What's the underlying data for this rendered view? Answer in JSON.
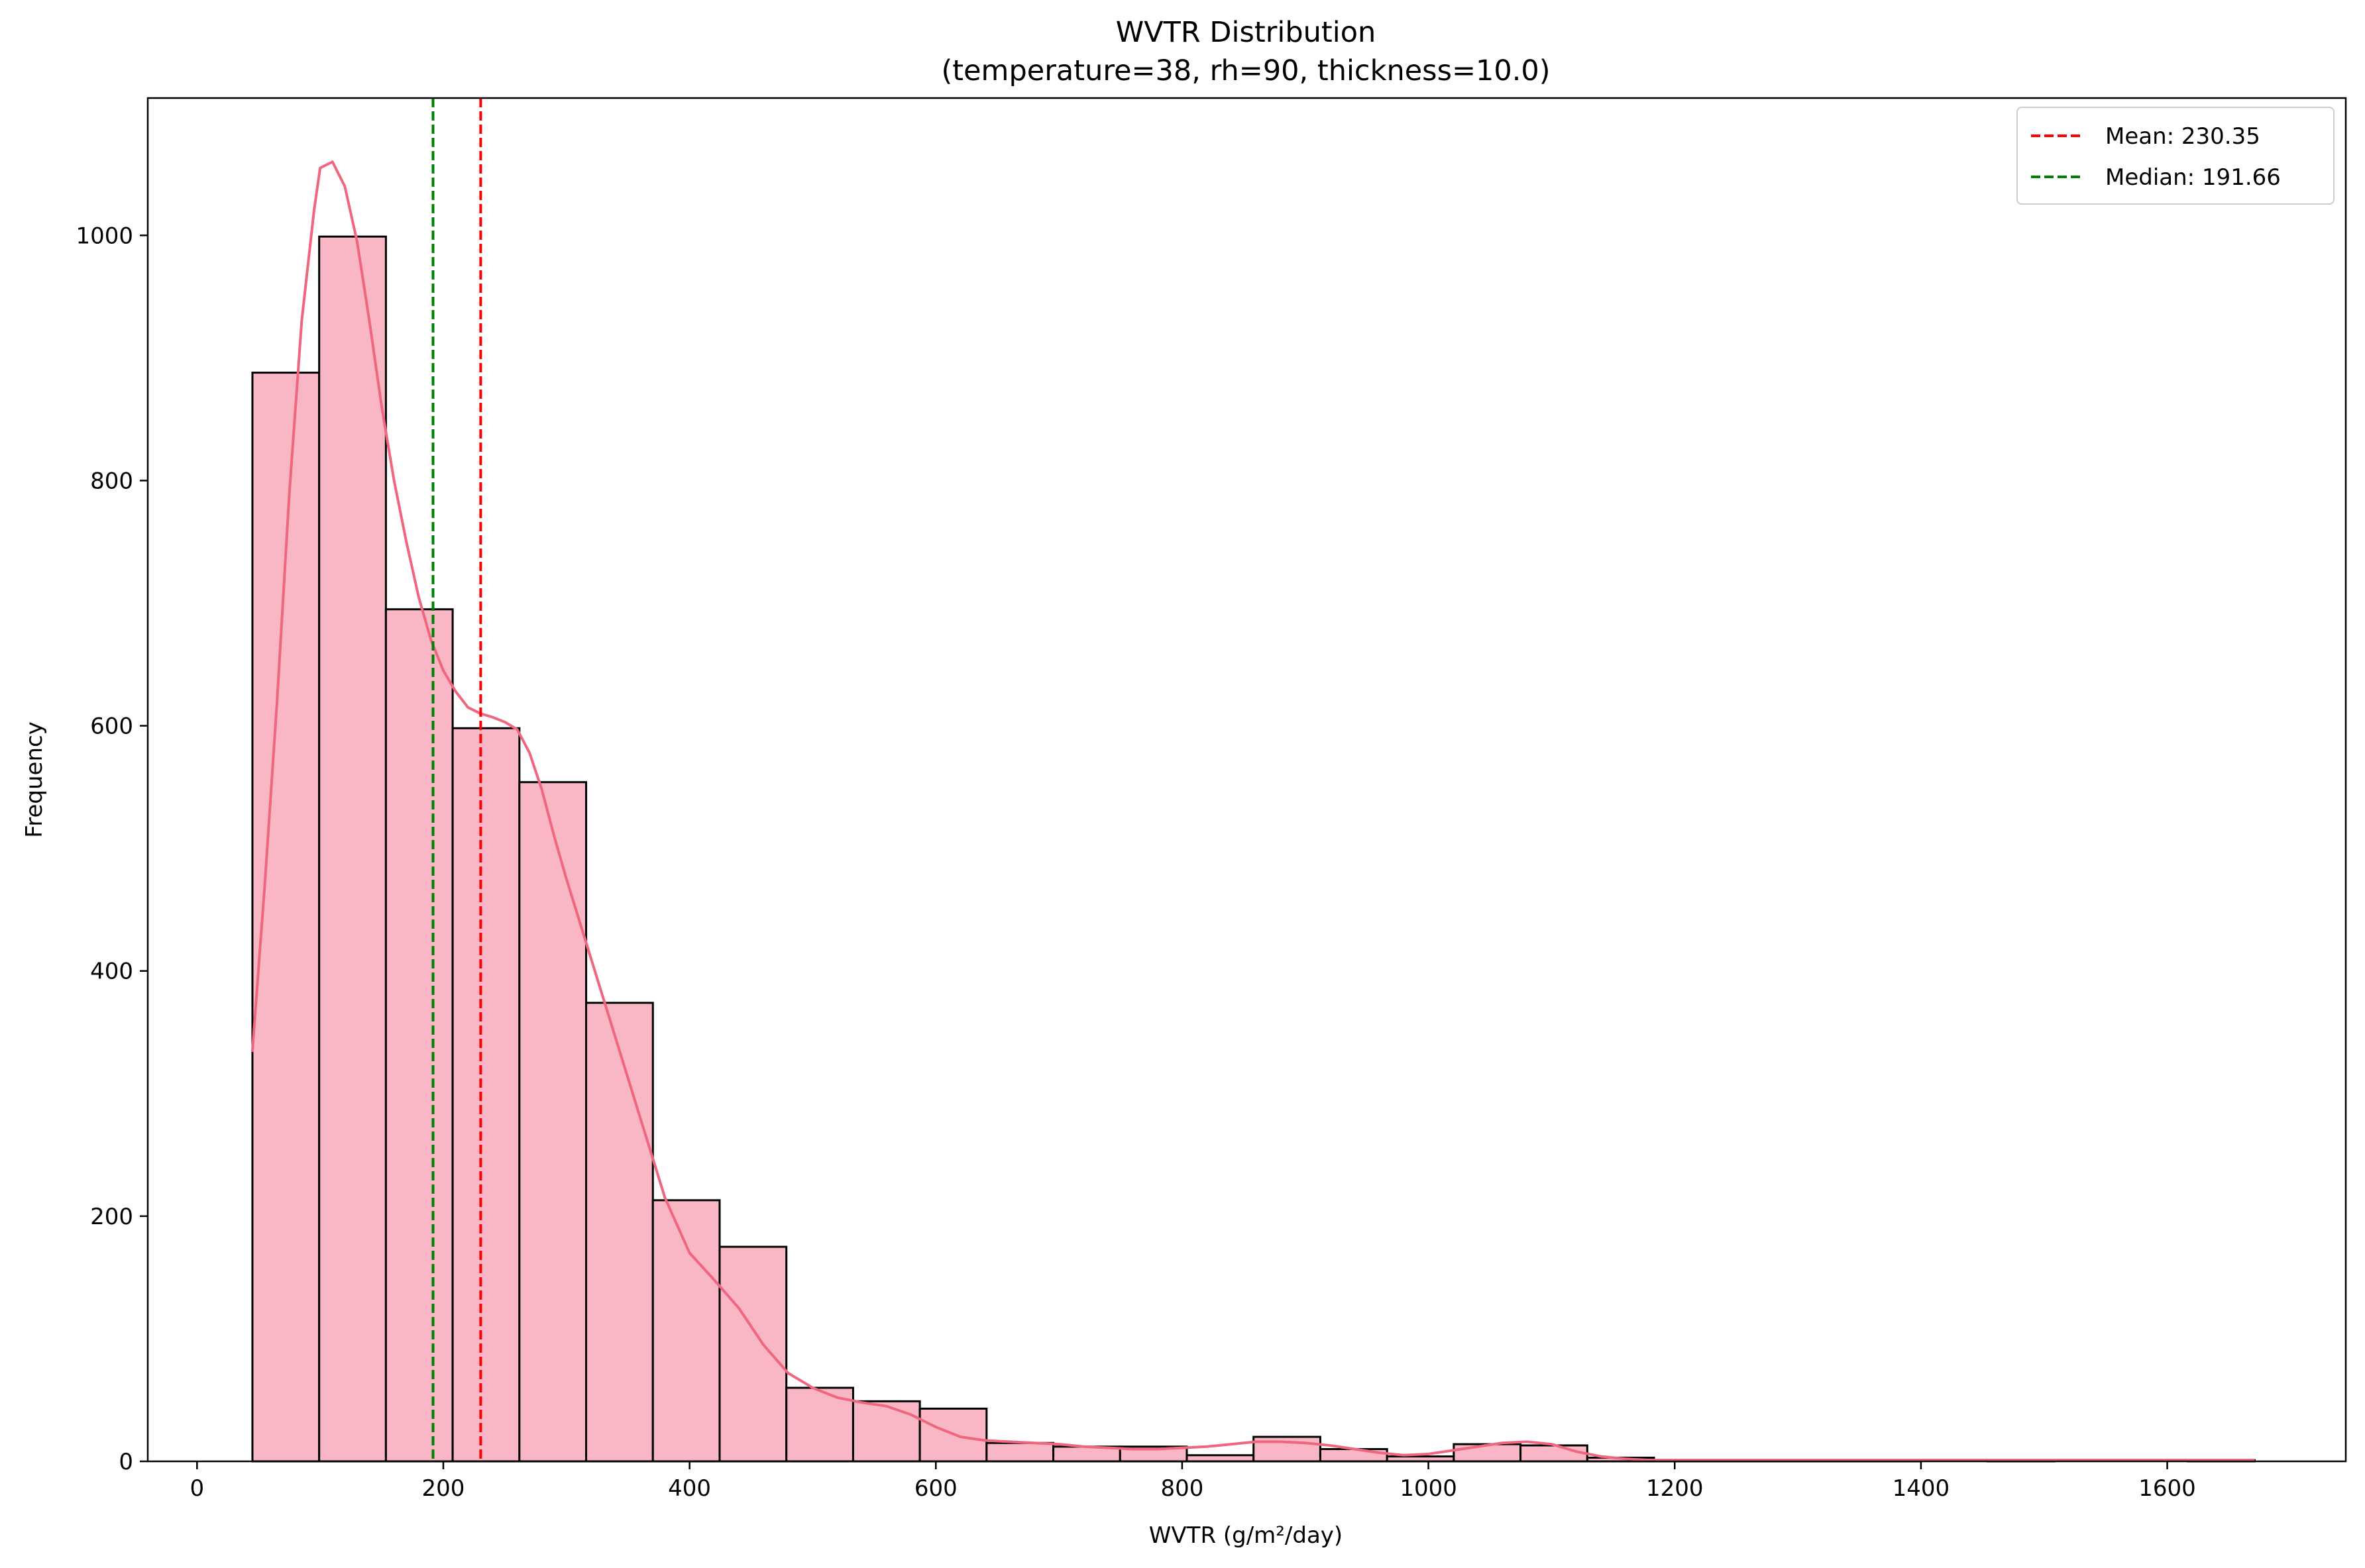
{
  "chart_data": {
    "type": "histogram",
    "title": "WVTR Distribution",
    "subtitle": "(temperature=38, rh=90, thickness=10.0)",
    "xlabel": "WVTR (g/m²/day)",
    "ylabel": "Frequency",
    "xlim": [
      -40,
      1745
    ],
    "ylim": [
      0,
      1112
    ],
    "xticks": [
      0,
      200,
      400,
      600,
      800,
      1000,
      1200,
      1400,
      1600
    ],
    "yticks": [
      0,
      200,
      400,
      600,
      800,
      1000
    ],
    "bin_start": 45,
    "bin_width": 54.2,
    "bin_counts": [
      888,
      999,
      695,
      598,
      554,
      374,
      213,
      175,
      60,
      49,
      43,
      15,
      12,
      12,
      5,
      20,
      10,
      4,
      14,
      13,
      3,
      1,
      1,
      1,
      1,
      0,
      1,
      0,
      0,
      1
    ],
    "kde": {
      "x": [
        45,
        55,
        65,
        75,
        85,
        95,
        100,
        110,
        120,
        130,
        140,
        150,
        160,
        170,
        180,
        190,
        200,
        210,
        220,
        230,
        240,
        250,
        260,
        270,
        280,
        290,
        300,
        320,
        340,
        360,
        380,
        400,
        420,
        440,
        460,
        480,
        500,
        520,
        540,
        560,
        580,
        600,
        620,
        640,
        660,
        680,
        700,
        720,
        740,
        760,
        780,
        800,
        820,
        840,
        860,
        880,
        900,
        920,
        940,
        960,
        980,
        1000,
        1020,
        1040,
        1060,
        1080,
        1100,
        1120,
        1140,
        1160,
        1180,
        1200,
        1300,
        1400,
        1500,
        1600,
        1670
      ],
      "y": [
        335,
        470,
        620,
        790,
        930,
        1020,
        1055,
        1060,
        1040,
        995,
        930,
        860,
        800,
        750,
        705,
        670,
        645,
        628,
        615,
        610,
        607,
        603,
        597,
        578,
        548,
        510,
        475,
        410,
        345,
        280,
        215,
        170,
        148,
        125,
        95,
        72,
        60,
        52,
        48,
        45,
        38,
        28,
        20,
        17,
        16,
        15,
        14,
        12,
        11,
        10,
        10,
        11,
        12,
        14,
        16,
        16,
        15,
        13,
        10,
        7,
        5,
        6,
        9,
        12,
        15,
        16,
        14,
        8,
        4,
        2,
        1,
        1,
        1,
        1,
        1,
        1,
        1
      ]
    },
    "reference_lines": [
      {
        "label": "Mean: 230.35",
        "value": 230.35,
        "color": "#ff0000",
        "style": "dashed"
      },
      {
        "label": "Median: 191.66",
        "value": 191.66,
        "color": "#008000",
        "style": "dashed"
      }
    ],
    "legend": "upper right",
    "grid": false
  },
  "colors": {
    "bar_fill": "#f9b7c6",
    "bar_edge": "#000000",
    "kde_line": "#f0667f"
  }
}
